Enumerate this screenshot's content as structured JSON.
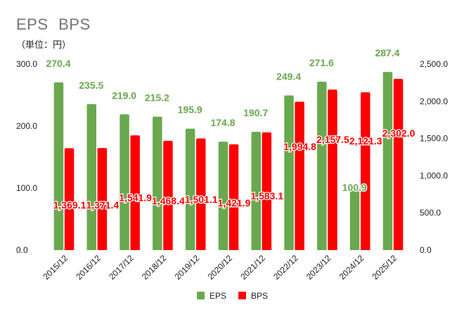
{
  "chart_data": {
    "type": "bar",
    "title": "EPS  BPS",
    "subtitle": "（単位：円）",
    "categories": [
      "2015/12",
      "2016/12",
      "2017/12",
      "2018/12",
      "2019/12",
      "2020/12",
      "2021/12",
      "2022/12",
      "2023/12",
      "2024/12",
      "2025/12"
    ],
    "series": [
      {
        "name": "EPS",
        "axis": "left",
        "color": "#6aa84f",
        "values": [
          270.4,
          235.5,
          219.0,
          215.2,
          195.9,
          174.8,
          190.7,
          249.4,
          271.6,
          100.9,
          287.4
        ],
        "labels": [
          "270.4",
          "235.5",
          "219.0",
          "215.2",
          "195.9",
          "174.8",
          "190.7",
          "249.4",
          "271.6",
          "100.9",
          "287.4"
        ]
      },
      {
        "name": "BPS",
        "axis": "right",
        "color": "#ff0000",
        "values": [
          1369.1,
          1371.4,
          1541.9,
          1468.4,
          1501.1,
          1421.9,
          1583.1,
          1994.8,
          2157.5,
          2121.3,
          2302.0
        ],
        "labels": [
          "1,369.1",
          "1,371.4",
          "1,541.9",
          "1,468.4",
          "1,501.1",
          "1,421.9",
          "1,583.1",
          "1,994.8",
          "2,157.5",
          "2,121.3",
          "2,302.0"
        ]
      }
    ],
    "y_left": {
      "range": [
        0,
        300
      ],
      "ticks": [
        "0.0",
        "100.0",
        "200.0",
        "300.0"
      ]
    },
    "y_right": {
      "range": [
        0,
        2500
      ],
      "ticks": [
        "0.0",
        "500.0",
        "1,000.0",
        "1,500.0",
        "2,000.0",
        "2,500.0"
      ]
    },
    "grid": false,
    "legend": "bottom"
  }
}
